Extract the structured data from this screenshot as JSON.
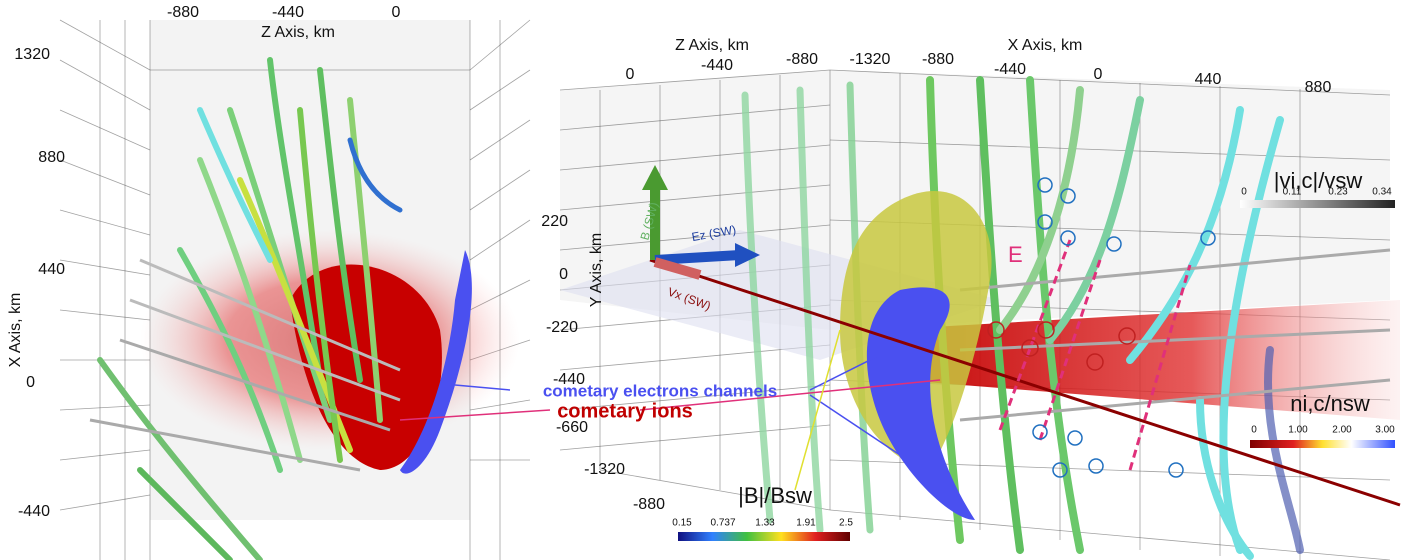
{
  "left_panel": {
    "z_axis_title": "Z Axis, km",
    "z_ticks": [
      "-880",
      "-440",
      "0"
    ],
    "x_axis_title": "X Axis, km",
    "x_ticks": [
      "1320",
      "880",
      "440",
      "0",
      "-440"
    ]
  },
  "right_panel": {
    "z_axis_title": "Z Axis, km",
    "z_ticks": [
      "0",
      "-440",
      "-880",
      "-1320"
    ],
    "x_axis_title": "X Axis, km",
    "x_ticks": [
      "-880",
      "-440",
      "0",
      "440",
      "880"
    ],
    "y_axis_title": "Y Axis, km",
    "y_ticks": [
      "220",
      "0",
      "-220",
      "-440",
      "-660"
    ],
    "z_ticks_bottom": [
      "-1320",
      "-880"
    ],
    "vectors": [
      "B (SW)",
      "Ez (SW)",
      "Vx (SW)"
    ],
    "e_parallel": "E",
    "velocity_bar": {
      "title": "|vi,c|/vsw",
      "ticks": [
        "0",
        "0.11",
        "0.23",
        "0.34"
      ]
    },
    "density_bar": {
      "title": "ni,c/nsw",
      "ticks": [
        "0",
        "1.00",
        "2.00",
        "3.00"
      ]
    },
    "field_bar": {
      "title": "|B|/Bsw",
      "ticks": [
        "0.15",
        "0.737",
        "1.33",
        "1.91",
        "2.5"
      ]
    }
  },
  "annotations": {
    "electrons": "cometary electrons channels",
    "ions": "cometary ions"
  }
}
